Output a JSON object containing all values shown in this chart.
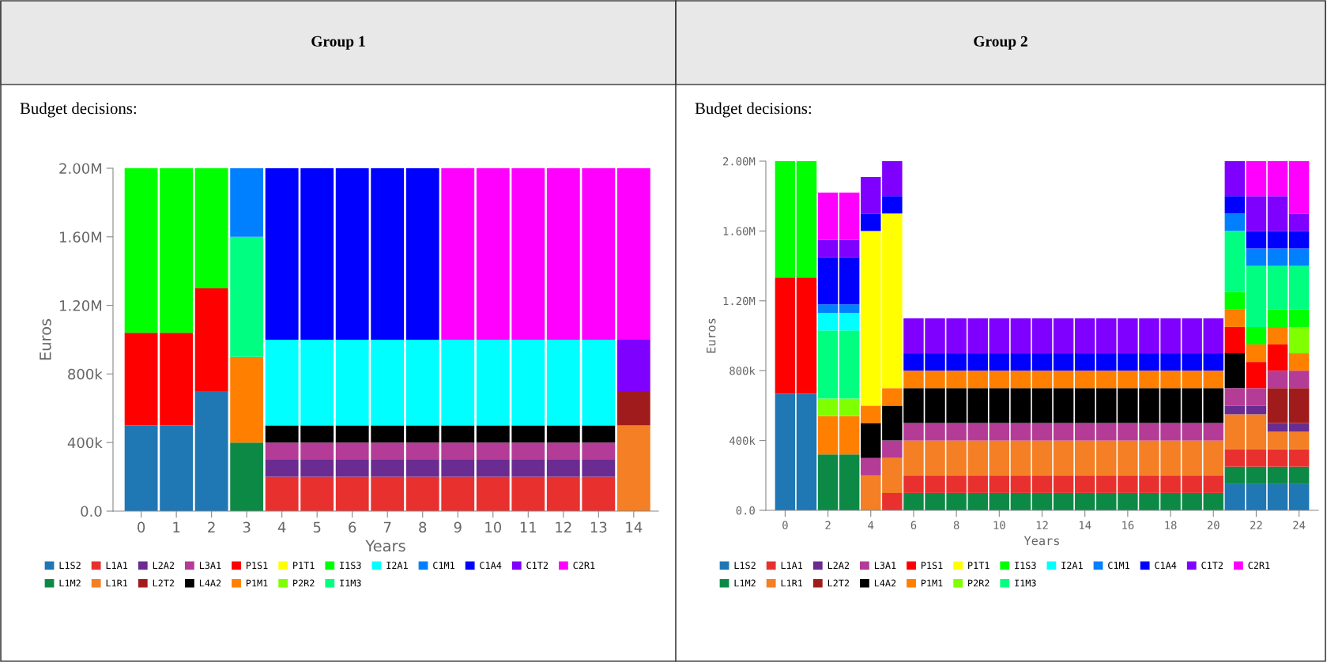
{
  "chart_data": [
    {
      "type": "bar",
      "title": "Group 1",
      "subtitle": "Budget decisions:",
      "xlabel": "Years",
      "ylabel": "Euros",
      "stacked": true,
      "legend": "bottom",
      "x": [
        0,
        1,
        2,
        3,
        4,
        5,
        6,
        7,
        8,
        9,
        10,
        11,
        12,
        13,
        14
      ],
      "xlim": [
        -0.8,
        14.7
      ],
      "xticks": [
        0,
        1,
        2,
        3,
        4,
        5,
        6,
        7,
        8,
        9,
        10,
        11,
        12,
        13,
        14
      ],
      "ylim": [
        0,
        2000000
      ],
      "yticks": [
        {
          "value": 0,
          "label": "0.0"
        },
        {
          "value": 400000,
          "label": "400k"
        },
        {
          "value": 800000,
          "label": "800k"
        },
        {
          "value": 1200000,
          "label": "1.20M"
        },
        {
          "value": 1600000,
          "label": "1.60M"
        },
        {
          "value": 2000000,
          "label": "2.00M"
        }
      ],
      "series": [
        {
          "name": "L1S2",
          "color": "#1f77b4",
          "values": [
            500000,
            500000,
            700000,
            null,
            null,
            null,
            null,
            null,
            null,
            null,
            null,
            null,
            null,
            null,
            null
          ]
        },
        {
          "name": "L1M2",
          "color": "#0c8a45",
          "values": [
            null,
            null,
            null,
            400000,
            null,
            null,
            null,
            null,
            null,
            null,
            null,
            null,
            null,
            null,
            null
          ]
        },
        {
          "name": "L1A1",
          "color": "#e8312f",
          "values": [
            null,
            null,
            null,
            null,
            200000,
            200000,
            200000,
            200000,
            200000,
            200000,
            200000,
            200000,
            200000,
            200000,
            null
          ]
        },
        {
          "name": "L1R1",
          "color": "#f47f24",
          "values": [
            null,
            null,
            null,
            null,
            null,
            null,
            null,
            null,
            null,
            null,
            null,
            null,
            null,
            null,
            500000
          ]
        },
        {
          "name": "L2A2",
          "color": "#6a2c91",
          "values": [
            null,
            null,
            null,
            null,
            100000,
            100000,
            100000,
            100000,
            100000,
            100000,
            100000,
            100000,
            100000,
            100000,
            null
          ]
        },
        {
          "name": "L2T2",
          "color": "#a01c1c",
          "values": [
            null,
            null,
            null,
            null,
            null,
            null,
            null,
            null,
            null,
            null,
            null,
            null,
            null,
            null,
            200000
          ]
        },
        {
          "name": "L3A1",
          "color": "#b43c96",
          "values": [
            null,
            null,
            null,
            null,
            100000,
            100000,
            100000,
            100000,
            100000,
            100000,
            100000,
            100000,
            100000,
            100000,
            null
          ]
        },
        {
          "name": "L4A2",
          "color": "#000000",
          "values": [
            null,
            null,
            null,
            null,
            100000,
            100000,
            100000,
            100000,
            100000,
            100000,
            100000,
            100000,
            100000,
            100000,
            null
          ]
        },
        {
          "name": "P1S1",
          "color": "#ff0000",
          "values": [
            540000,
            540000,
            600000,
            null,
            null,
            null,
            null,
            null,
            null,
            null,
            null,
            null,
            null,
            null,
            null
          ]
        },
        {
          "name": "P1M1",
          "color": "#ff8000",
          "values": [
            null,
            null,
            null,
            500000,
            null,
            null,
            null,
            null,
            null,
            null,
            null,
            null,
            null,
            null,
            null
          ]
        },
        {
          "name": "P1T1",
          "color": "#ffff00",
          "values": [
            null,
            null,
            null,
            null,
            null,
            null,
            null,
            null,
            null,
            null,
            null,
            null,
            null,
            null,
            null
          ]
        },
        {
          "name": "P2R2",
          "color": "#80ff00",
          "values": [
            null,
            null,
            null,
            null,
            null,
            null,
            null,
            null,
            null,
            null,
            null,
            null,
            null,
            null,
            null
          ]
        },
        {
          "name": "I1S3",
          "color": "#00ff00",
          "values": [
            960000,
            960000,
            700000,
            null,
            null,
            null,
            null,
            null,
            null,
            null,
            null,
            null,
            null,
            null,
            null
          ]
        },
        {
          "name": "I1M3",
          "color": "#00ff80",
          "values": [
            null,
            null,
            null,
            700000,
            null,
            null,
            null,
            null,
            null,
            null,
            null,
            null,
            null,
            null,
            null
          ]
        },
        {
          "name": "I2A1",
          "color": "#00ffff",
          "values": [
            null,
            null,
            null,
            null,
            500000,
            500000,
            500000,
            500000,
            500000,
            500000,
            500000,
            500000,
            500000,
            500000,
            null
          ]
        },
        {
          "name": "C1M1",
          "color": "#0080ff",
          "values": [
            null,
            null,
            null,
            400000,
            null,
            null,
            null,
            null,
            null,
            null,
            null,
            null,
            null,
            null,
            null
          ]
        },
        {
          "name": "C1A4",
          "color": "#0000ff",
          "values": [
            null,
            null,
            null,
            null,
            1000000,
            1000000,
            1000000,
            1000000,
            1000000,
            null,
            null,
            null,
            null,
            null,
            null
          ]
        },
        {
          "name": "C1T2",
          "color": "#8000ff",
          "values": [
            null,
            null,
            null,
            null,
            null,
            null,
            null,
            null,
            null,
            null,
            null,
            null,
            null,
            null,
            300000
          ]
        },
        {
          "name": "C2R1",
          "color": "#ff00ff",
          "values": [
            null,
            null,
            null,
            null,
            null,
            null,
            null,
            null,
            null,
            1000000,
            1000000,
            1000000,
            1000000,
            1000000,
            1000000
          ]
        }
      ]
    },
    {
      "type": "bar",
      "title": "Group 2",
      "subtitle": "Budget decisions:",
      "xlabel": "Years",
      "ylabel": "Euros",
      "stacked": true,
      "legend": "bottom",
      "x": [
        0,
        1,
        2,
        3,
        4,
        5,
        6,
        7,
        8,
        9,
        10,
        11,
        12,
        13,
        14,
        15,
        16,
        17,
        18,
        19,
        20,
        21,
        22,
        23,
        24
      ],
      "xlim": [
        -0.9,
        24.9
      ],
      "xticks": [
        0,
        2,
        4,
        6,
        8,
        10,
        12,
        14,
        16,
        18,
        20,
        22,
        24
      ],
      "ylim": [
        0,
        2000000
      ],
      "yticks": [
        {
          "value": 0,
          "label": "0.0"
        },
        {
          "value": 400000,
          "label": "400k"
        },
        {
          "value": 800000,
          "label": "800k"
        },
        {
          "value": 1200000,
          "label": "1.20M"
        },
        {
          "value": 1600000,
          "label": "1.60M"
        },
        {
          "value": 2000000,
          "label": "2.00M"
        }
      ],
      "series": [
        {
          "name": "L1S2",
          "color": "#1f77b4",
          "values": [
            667000,
            667000,
            null,
            null,
            null,
            null,
            null,
            null,
            null,
            null,
            null,
            null,
            null,
            null,
            null,
            null,
            null,
            null,
            null,
            null,
            null,
            150000,
            150000,
            150000,
            150000
          ]
        },
        {
          "name": "L1M2",
          "color": "#0c8a45",
          "values": [
            null,
            null,
            320000,
            320000,
            null,
            null,
            100000,
            100000,
            100000,
            100000,
            100000,
            100000,
            100000,
            100000,
            100000,
            100000,
            100000,
            100000,
            100000,
            100000,
            100000,
            100000,
            100000,
            100000,
            100000
          ]
        },
        {
          "name": "L1A1",
          "color": "#e8312f",
          "values": [
            null,
            null,
            null,
            null,
            null,
            100000,
            100000,
            100000,
            100000,
            100000,
            100000,
            100000,
            100000,
            100000,
            100000,
            100000,
            100000,
            100000,
            100000,
            100000,
            100000,
            100000,
            100000,
            100000,
            100000
          ]
        },
        {
          "name": "L1R1",
          "color": "#f47f24",
          "values": [
            null,
            null,
            null,
            null,
            200000,
            200000,
            200000,
            200000,
            200000,
            200000,
            200000,
            200000,
            200000,
            200000,
            200000,
            200000,
            200000,
            200000,
            200000,
            200000,
            200000,
            200000,
            200000,
            100000,
            100000
          ]
        },
        {
          "name": "L2A2",
          "color": "#6a2c91",
          "values": [
            null,
            null,
            null,
            null,
            null,
            null,
            null,
            null,
            null,
            null,
            null,
            null,
            null,
            null,
            null,
            null,
            null,
            null,
            null,
            null,
            null,
            50000,
            50000,
            50000,
            50000
          ]
        },
        {
          "name": "L2T2",
          "color": "#a01c1c",
          "values": [
            null,
            null,
            null,
            null,
            null,
            null,
            null,
            null,
            null,
            null,
            null,
            null,
            null,
            null,
            null,
            null,
            null,
            null,
            null,
            null,
            null,
            null,
            null,
            200000,
            200000
          ]
        },
        {
          "name": "L3A1",
          "color": "#b43c96",
          "values": [
            null,
            null,
            null,
            null,
            100000,
            100000,
            100000,
            100000,
            100000,
            100000,
            100000,
            100000,
            100000,
            100000,
            100000,
            100000,
            100000,
            100000,
            100000,
            100000,
            100000,
            100000,
            100000,
            100000,
            100000
          ]
        },
        {
          "name": "L4A2",
          "color": "#000000",
          "values": [
            null,
            null,
            null,
            null,
            200000,
            200000,
            200000,
            200000,
            200000,
            200000,
            200000,
            200000,
            200000,
            200000,
            200000,
            200000,
            200000,
            200000,
            200000,
            200000,
            200000,
            200000,
            null,
            null,
            null
          ]
        },
        {
          "name": "P1S1",
          "color": "#ff0000",
          "values": [
            667000,
            667000,
            null,
            null,
            null,
            null,
            null,
            null,
            null,
            null,
            null,
            null,
            null,
            null,
            null,
            null,
            null,
            null,
            null,
            null,
            null,
            150000,
            150000,
            150000,
            null
          ]
        },
        {
          "name": "P1M1",
          "color": "#ff8000",
          "values": [
            null,
            null,
            220000,
            220000,
            100000,
            100000,
            100000,
            100000,
            100000,
            100000,
            100000,
            100000,
            100000,
            100000,
            100000,
            100000,
            100000,
            100000,
            100000,
            100000,
            100000,
            100000,
            100000,
            100000,
            100000
          ]
        },
        {
          "name": "P1T1",
          "color": "#ffff00",
          "values": [
            null,
            null,
            null,
            null,
            1000000,
            1000000,
            null,
            null,
            null,
            null,
            null,
            null,
            null,
            null,
            null,
            null,
            null,
            null,
            null,
            null,
            null,
            null,
            null,
            null,
            null
          ]
        },
        {
          "name": "P2R2",
          "color": "#80ff00",
          "values": [
            null,
            null,
            100000,
            100000,
            null,
            null,
            null,
            null,
            null,
            null,
            null,
            null,
            null,
            null,
            null,
            null,
            null,
            null,
            null,
            null,
            null,
            null,
            null,
            null,
            150000
          ]
        },
        {
          "name": "I1S3",
          "color": "#00ff00",
          "values": [
            666000,
            666000,
            null,
            null,
            null,
            null,
            null,
            null,
            null,
            null,
            null,
            null,
            null,
            null,
            null,
            null,
            null,
            null,
            null,
            null,
            null,
            100000,
            100000,
            100000,
            100000
          ]
        },
        {
          "name": "I1M3",
          "color": "#00ff80",
          "values": [
            null,
            null,
            390000,
            390000,
            null,
            null,
            null,
            null,
            null,
            null,
            null,
            null,
            null,
            null,
            null,
            null,
            null,
            null,
            null,
            null,
            null,
            350000,
            350000,
            250000,
            250000
          ]
        },
        {
          "name": "I2A1",
          "color": "#00ffff",
          "values": [
            null,
            null,
            100000,
            100000,
            null,
            null,
            null,
            null,
            null,
            null,
            null,
            null,
            null,
            null,
            null,
            null,
            null,
            null,
            null,
            null,
            null,
            null,
            null,
            null,
            null
          ]
        },
        {
          "name": "C1M1",
          "color": "#0080ff",
          "values": [
            null,
            null,
            50000,
            50000,
            null,
            null,
            null,
            null,
            null,
            null,
            null,
            null,
            null,
            null,
            null,
            null,
            null,
            null,
            null,
            null,
            null,
            100000,
            100000,
            100000,
            100000
          ]
        },
        {
          "name": "C1A4",
          "color": "#0000ff",
          "values": [
            null,
            null,
            270000,
            270000,
            100000,
            100000,
            100000,
            100000,
            100000,
            100000,
            100000,
            100000,
            100000,
            100000,
            100000,
            100000,
            100000,
            100000,
            100000,
            100000,
            100000,
            100000,
            100000,
            100000,
            100000
          ]
        },
        {
          "name": "C1T2",
          "color": "#8000ff",
          "values": [
            null,
            null,
            100000,
            100000,
            210000,
            200000,
            200000,
            200000,
            200000,
            200000,
            200000,
            200000,
            200000,
            200000,
            200000,
            200000,
            200000,
            200000,
            200000,
            200000,
            200000,
            200000,
            200000,
            200000,
            100000
          ]
        },
        {
          "name": "C2R1",
          "color": "#ff00ff",
          "values": [
            null,
            null,
            270000,
            270000,
            null,
            null,
            null,
            null,
            null,
            null,
            null,
            null,
            null,
            null,
            null,
            null,
            null,
            null,
            null,
            null,
            null,
            null,
            200000,
            200000,
            300000
          ]
        }
      ]
    }
  ]
}
